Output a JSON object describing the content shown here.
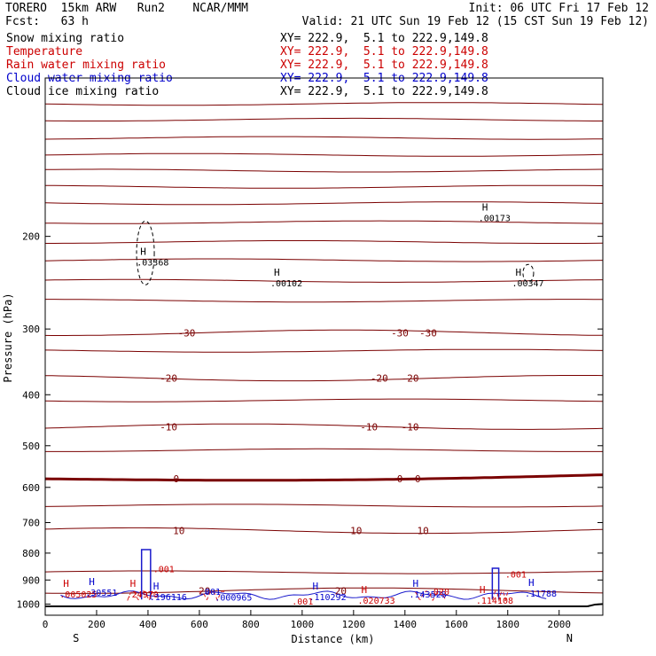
{
  "header": {
    "model_line": "TORERO  15km ARW   Run2    NCAR/MMM",
    "init_line": "Init: 06 UTC Fri 17 Feb 12",
    "fcst_line": "Fcst:   63 h",
    "valid_line": "Valid: 21 UTC Sun 19 Feb 12 (15 CST Sun 19 Feb 12)"
  },
  "legend": [
    {
      "label": "Snow mixing ratio",
      "xy": "XY= 222.9,  5.1 to 222.9,149.8",
      "color": "#000000"
    },
    {
      "label": "Temperature",
      "xy": "XY= 222.9,  5.1 to 222.9,149.8",
      "color": "#cc0000"
    },
    {
      "label": "Rain water mixing ratio",
      "xy": "XY= 222.9,  5.1 to 222.9,149.8",
      "color": "#cc0000"
    },
    {
      "label": "Cloud water mixing ratio",
      "xy": "XY= 222.9,  5.1 to 222.9,149.8",
      "color": "#0000cc"
    },
    {
      "label": "Cloud ice mixing ratio",
      "xy": "XY= 222.9,  5.1 to 222.9,149.8",
      "color": "#000000"
    }
  ],
  "colors": {
    "temperature": "#7a0000",
    "rain": "#dd2222",
    "cloud_water": "#1a1acc",
    "snow": "#000000",
    "ground": "#000000"
  },
  "chart_data": {
    "type": "contour",
    "xlabel": "Distance (km)",
    "ylabel": "Pressure (hPa)",
    "xlim": [
      0,
      2170
    ],
    "ylim": [
      1050,
      100
    ],
    "y_scale": "log",
    "x_ticks": [
      0,
      200,
      400,
      600,
      800,
      1000,
      1200,
      1400,
      1600,
      1800,
      2000
    ],
    "y_ticks": [
      200,
      300,
      400,
      500,
      600,
      700,
      800,
      900,
      1000
    ],
    "x_end_labels": {
      "left": "S",
      "right": "N"
    },
    "temperature_isotherms": [
      {
        "value": 20,
        "pressure": 943,
        "label": "20"
      },
      {
        "value": 10,
        "pressure": 725,
        "label": "10"
      },
      {
        "value": 0,
        "pressure": 578,
        "label": "0"
      },
      {
        "value": -10,
        "pressure": 460,
        "label": "-10"
      },
      {
        "value": -20,
        "pressure": 372,
        "label": "-20"
      },
      {
        "value": -30,
        "pressure": 305,
        "label": "-30"
      }
    ],
    "isotherm_label_positions_km": [
      {
        "value": -30,
        "km": [
          550,
          1380,
          1490
        ]
      },
      {
        "value": -20,
        "km": [
          480,
          1300,
          1420
        ]
      },
      {
        "value": -10,
        "km": [
          480,
          1260,
          1420
        ]
      },
      {
        "value": 0,
        "km": [
          510,
          1380,
          1450
        ]
      },
      {
        "value": 10,
        "km": [
          520,
          1210,
          1470
        ]
      },
      {
        "value": 20,
        "km": [
          620,
          1150
        ]
      }
    ],
    "maxima_labels": [
      {
        "mark": "H",
        "value": ".03368",
        "km": 370,
        "hPa": 222,
        "color": "black"
      },
      {
        "mark": "H",
        "value": ".00102",
        "km": 890,
        "hPa": 243,
        "color": "black"
      },
      {
        "mark": "H",
        "value": ".00173",
        "km": 1700,
        "hPa": 183,
        "color": "black"
      },
      {
        "mark": "H",
        "value": ".00347",
        "km": 1830,
        "hPa": 243,
        "color": "black"
      },
      {
        "mark": "H",
        "value": ".005025",
        "km": 70,
        "hPa": 950,
        "color": "red"
      },
      {
        "mark": "H",
        "value": ".30551",
        "km": 170,
        "hPa": 942,
        "color": "blue"
      },
      {
        "mark": "H",
        "value": ".24970",
        "km": 330,
        "hPa": 950,
        "color": "red"
      },
      {
        "mark": "H",
        "value": ".196116",
        "km": 420,
        "hPa": 960,
        "color": "blue"
      },
      {
        "mark": "H",
        "value": ".110292",
        "km": 1040,
        "hPa": 960,
        "color": "blue"
      },
      {
        "mark": "H",
        "value": ".020733",
        "km": 1230,
        "hPa": 975,
        "color": "red"
      },
      {
        "mark": "H",
        "value": ".143528",
        "km": 1430,
        "hPa": 950,
        "color": "blue"
      },
      {
        "mark": "H",
        "value": ".114108",
        "km": 1690,
        "hPa": 975,
        "color": "red"
      },
      {
        "mark": "H",
        "value": ".11788",
        "km": 1880,
        "hPa": 945,
        "color": "blue"
      }
    ],
    "contour_labels": [
      {
        "text": ".001",
        "km": 420,
        "hPa": 870,
        "color": "red"
      },
      {
        "text": ".001",
        "km": 1790,
        "hPa": 890,
        "color": "red"
      },
      {
        "text": ".001",
        "km": 600,
        "hPa": 960,
        "color": "blue"
      },
      {
        "text": ".000965",
        "km": 660,
        "hPa": 985,
        "color": "blue"
      },
      {
        "text": ".001",
        "km": 960,
        "hPa": 1003,
        "color": "red"
      },
      {
        "text": ".020",
        "km": 1490,
        "hPa": 960,
        "color": "red"
      }
    ]
  }
}
